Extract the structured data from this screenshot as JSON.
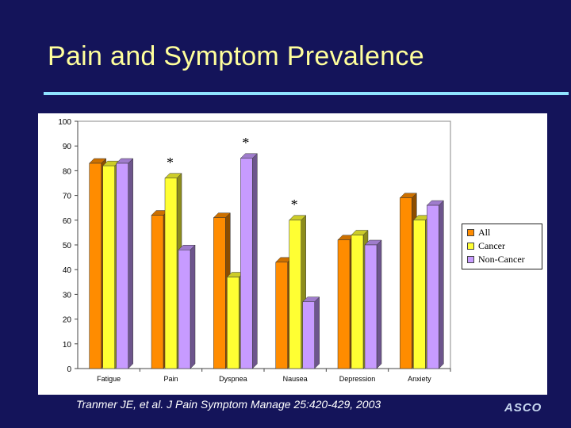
{
  "slide": {
    "title": "Pain and Symptom Prevalence",
    "citation": "Tranmer JE, et al. J Pain Symptom Manage 25:420-429, 2003",
    "logo": "ASCO"
  },
  "colors": {
    "background": "#14145a",
    "title": "#ffff9c",
    "rule": "#8fe3ff",
    "all": "#ff8c00",
    "cancer": "#ffff33",
    "non_cancer": "#c79bff"
  },
  "chart_data": {
    "type": "bar",
    "title": "",
    "xlabel": "",
    "ylabel": "",
    "ylim": [
      0,
      100
    ],
    "yticks": [
      "0",
      "10",
      "20",
      "30",
      "40",
      "50",
      "60",
      "70",
      "80",
      "90",
      "100"
    ],
    "categories": [
      "Fatigue",
      "Pain",
      "Dyspnea",
      "Nausea",
      "Depression",
      "Anxiety"
    ],
    "series": [
      {
        "name": "All",
        "color": "#ff8c00",
        "values": [
          83,
          62,
          61,
          43,
          52,
          69
        ]
      },
      {
        "name": "Cancer",
        "color": "#ffff33",
        "values": [
          82,
          77,
          37,
          60,
          54,
          60
        ]
      },
      {
        "name": "Non-Cancer",
        "color": "#c79bff",
        "values": [
          83,
          48,
          85,
          27,
          50,
          66
        ]
      }
    ],
    "annotations": [
      {
        "text": "*",
        "category": "Pain",
        "series": "Cancer"
      },
      {
        "text": "*",
        "category": "Dyspnea",
        "series": "Non-Cancer"
      },
      {
        "text": "*",
        "category": "Nausea",
        "series": "Cancer"
      }
    ],
    "legend": {
      "position": "right",
      "entries": [
        "All",
        "Cancer",
        "Non-Cancer"
      ]
    }
  }
}
